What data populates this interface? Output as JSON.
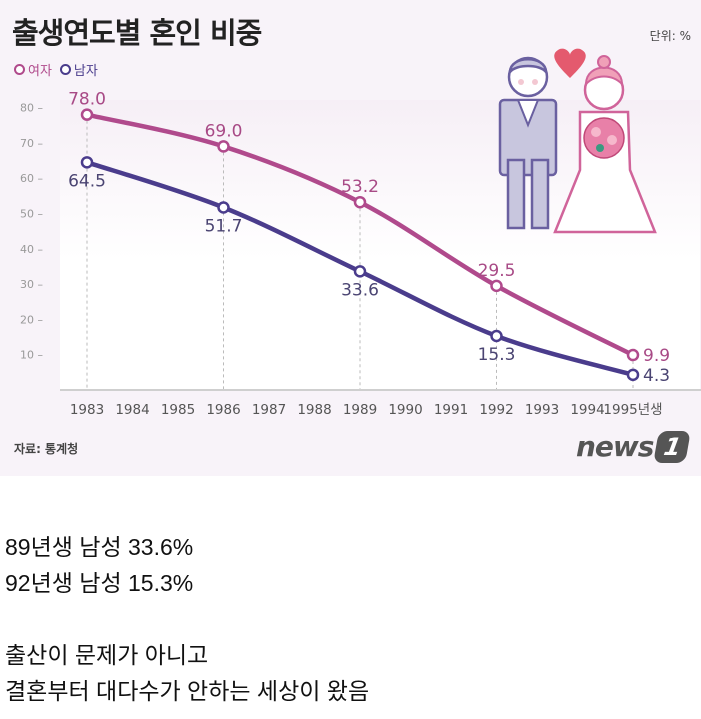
{
  "infographic": {
    "title": "출생연도별 혼인 비중",
    "unit": "단위: %",
    "legend": [
      {
        "label": "여자",
        "color": "#b04a8c"
      },
      {
        "label": "남자",
        "color": "#4a3c8c"
      }
    ],
    "source": "자료: 통계청",
    "logo": "news",
    "logo_badge": "1"
  },
  "chart_data": {
    "type": "line",
    "title": "출생연도별 혼인 비중",
    "unit": "%",
    "xlabel": "",
    "ylabel": "",
    "x": [
      "1983",
      "1984",
      "1985",
      "1986",
      "1987",
      "1988",
      "1989",
      "1990",
      "1991",
      "1992",
      "1993",
      "1994",
      "1995년생"
    ],
    "yticks": [
      "80",
      "70",
      "60",
      "50",
      "40",
      "30",
      "20",
      "10"
    ],
    "ylim": [
      0,
      85
    ],
    "grid": false,
    "legend_position": "top-left",
    "series": [
      {
        "name": "여자",
        "color": "#b04a8c",
        "points": [
          {
            "x": "1983",
            "y": 78.0
          },
          {
            "x": "1986",
            "y": 69.0
          },
          {
            "x": "1989",
            "y": 53.2
          },
          {
            "x": "1992",
            "y": 29.5
          },
          {
            "x": "1995년생",
            "y": 9.9
          }
        ],
        "labels": [
          "78.0",
          "69.0",
          "53.2",
          "29.5",
          "9.9"
        ]
      },
      {
        "name": "남자",
        "color": "#4a3c8c",
        "points": [
          {
            "x": "1983",
            "y": 64.5
          },
          {
            "x": "1986",
            "y": 51.7
          },
          {
            "x": "1989",
            "y": 33.6
          },
          {
            "x": "1992",
            "y": 15.3
          },
          {
            "x": "1995년생",
            "y": 4.3
          }
        ],
        "labels": [
          "64.5",
          "51.7",
          "33.6",
          "15.3",
          "4.3"
        ]
      }
    ]
  },
  "post": {
    "lines": [
      "89년생 남성 33.6%",
      "92년생 남성 15.3%",
      "",
      "출산이 문제가 아니고",
      "결혼부터 대다수가 안하는 세상이 왔음"
    ]
  }
}
